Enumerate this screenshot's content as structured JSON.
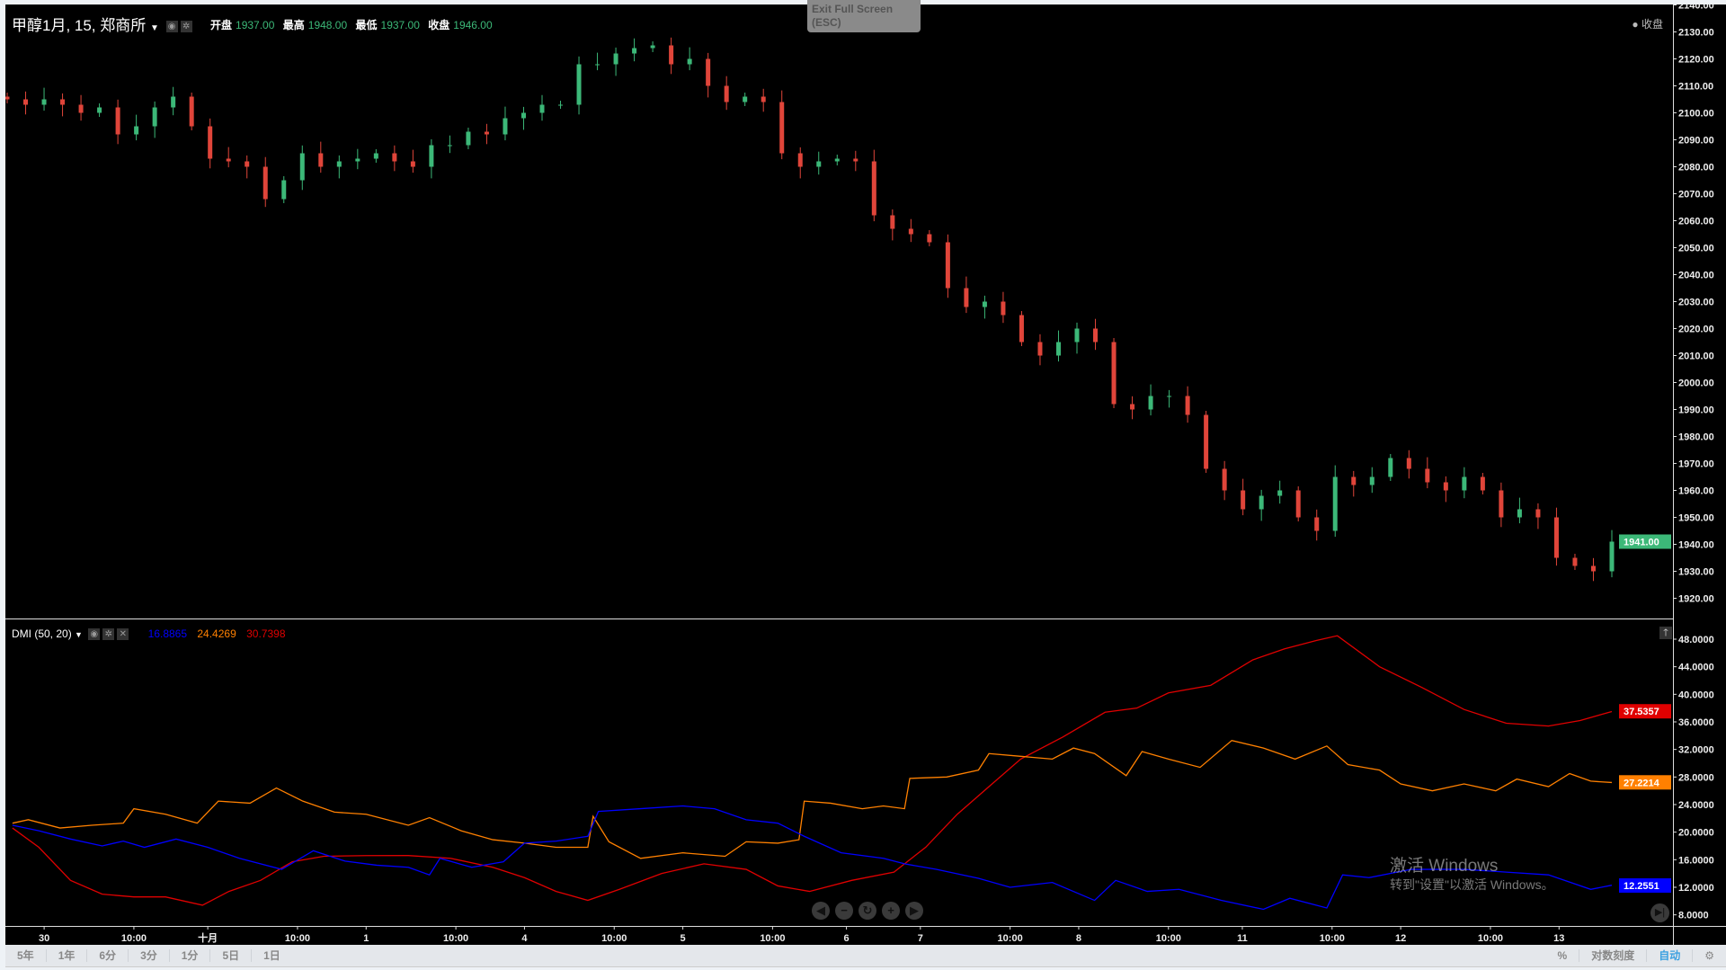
{
  "header": {
    "title": "甲醇1月, 15, 郑商所",
    "ohlc": [
      {
        "k": "开盘",
        "v": "1937.00"
      },
      {
        "k": "最高",
        "v": "1948.00"
      },
      {
        "k": "最低",
        "v": "1937.00"
      },
      {
        "k": "收盘",
        "v": "1946.00"
      }
    ],
    "status": "● 收盘"
  },
  "exit_fullscreen": {
    "line1": "Exit Full Screen",
    "line2": "(ESC)"
  },
  "dmi": {
    "name": "DMI (50, 20)",
    "values": [
      "16.8865",
      "24.4269",
      "30.7398"
    ],
    "colors": [
      "#0000ff",
      "#ff8000",
      "#e00000"
    ],
    "last_labels": {
      "adx": "37.5357",
      "minus": "27.2214",
      "plus": "12.2551"
    }
  },
  "watermark": {
    "line1": "激活 Windows",
    "line2": "转到\"设置\"以激活 Windows。"
  },
  "toolbar": {
    "ranges": [
      "5年",
      "1年",
      "6分",
      "3分",
      "1分",
      "5日",
      "1日"
    ],
    "percent": "%",
    "log": "对数刻度",
    "auto": "自动"
  },
  "chart_data": [
    {
      "type": "candlestick",
      "title": "甲醇1月, 15, 郑商所",
      "ylim": [
        1915,
        2140
      ],
      "yticks": [
        "2140.00",
        "2130.00",
        "2120.00",
        "2110.00",
        "2100.00",
        "2090.00",
        "2080.00",
        "2070.00",
        "2060.00",
        "2050.00",
        "2040.00",
        "2030.00",
        "2020.00",
        "2010.00",
        "2000.00",
        "1990.00",
        "1980.00",
        "1970.00",
        "1960.00",
        "1950.00",
        "1940.00",
        "1930.00",
        "1920.00"
      ],
      "last_price": "1941.00",
      "up_color": "#3cb878",
      "down_color": "#e0453a",
      "bars_total": 304,
      "closes": [
        2105,
        2103,
        2105,
        2103,
        2100,
        2102,
        2092,
        2095,
        2102,
        2106,
        2095,
        2083,
        2082,
        2080,
        2068,
        2075,
        2085,
        2080,
        2082,
        2083,
        2085,
        2082,
        2080,
        2088,
        2088,
        2093,
        2092,
        2098,
        2100,
        2103,
        2103,
        2118,
        2118,
        2122,
        2124,
        2125,
        2118,
        2120,
        2110,
        2104,
        2106,
        2104,
        2085,
        2080,
        2082,
        2083,
        2082,
        2062,
        2057,
        2055,
        2052,
        2035,
        2028,
        2030,
        2025,
        2015,
        2010,
        2015,
        2020,
        2015,
        1992,
        1990,
        1995,
        1995,
        1988,
        1968,
        1960,
        1953,
        1958,
        1960,
        1950,
        1945,
        1965,
        1962,
        1965,
        1972,
        1968,
        1963,
        1960,
        1965,
        1960,
        1950,
        1953,
        1950,
        1935,
        1932,
        1930,
        1941
      ]
    },
    {
      "type": "line",
      "title": "DMI (50, 20)",
      "ylim": [
        6.5,
        50
      ],
      "yticks": [
        "48.0000",
        "44.0000",
        "40.0000",
        "36.0000",
        "32.0000",
        "28.0000",
        "24.0000",
        "20.0000",
        "16.0000",
        "12.0000",
        "8.0000"
      ],
      "series": [
        {
          "name": "ADX",
          "color": "#e00000",
          "points": [
            [
              1,
              20.6
            ],
            [
              6,
              17.8
            ],
            [
              12,
              13
            ],
            [
              18,
              11
            ],
            [
              24,
              10.6
            ],
            [
              30,
              10.6
            ],
            [
              37,
              9.4
            ],
            [
              42,
              11.4
            ],
            [
              48,
              13
            ],
            [
              54,
              15.7
            ],
            [
              60,
              16.5
            ],
            [
              68,
              16.6
            ],
            [
              76,
              16.6
            ],
            [
              84,
              16.2
            ],
            [
              92,
              14.9
            ],
            [
              98,
              13.4
            ],
            [
              104,
              11.4
            ],
            [
              110,
              10.1
            ],
            [
              116,
              11.7
            ],
            [
              124,
              14
            ],
            [
              132,
              15.4
            ],
            [
              140,
              14.6
            ],
            [
              146,
              12.2
            ],
            [
              152,
              11.4
            ],
            [
              160,
              13
            ],
            [
              168,
              14.2
            ],
            [
              174,
              17.8
            ],
            [
              180,
              22.6
            ],
            [
              186,
              26.6
            ],
            [
              192,
              30.6
            ],
            [
              200,
              33.8
            ],
            [
              208,
              37.4
            ],
            [
              214,
              38
            ],
            [
              220,
              40.2
            ],
            [
              228,
              41.3
            ],
            [
              236,
              45
            ],
            [
              242,
              46.6
            ],
            [
              248,
              47.8
            ],
            [
              252,
              48.5
            ],
            [
              260,
              44
            ],
            [
              268,
              41
            ],
            [
              276,
              37.8
            ],
            [
              284,
              35.8
            ],
            [
              292,
              35.4
            ],
            [
              298,
              36.2
            ],
            [
              304,
              37.5
            ]
          ]
        },
        {
          "name": "-DI",
          "color": "#ff8000",
          "points": [
            [
              1,
              21.3
            ],
            [
              4,
              21.8
            ],
            [
              10,
              20.6
            ],
            [
              16,
              21
            ],
            [
              22,
              21.3
            ],
            [
              24,
              23.4
            ],
            [
              30,
              22.6
            ],
            [
              36,
              21.3
            ],
            [
              40,
              24.5
            ],
            [
              46,
              24.2
            ],
            [
              51,
              26.4
            ],
            [
              56,
              24.5
            ],
            [
              62,
              22.9
            ],
            [
              68,
              22.6
            ],
            [
              76,
              21
            ],
            [
              80,
              22.1
            ],
            [
              86,
              20.2
            ],
            [
              92,
              18.9
            ],
            [
              98,
              18.4
            ],
            [
              104,
              17.8
            ],
            [
              110,
              17.8
            ],
            [
              111,
              22.3
            ],
            [
              114,
              18.6
            ],
            [
              120,
              16.2
            ],
            [
              128,
              17
            ],
            [
              136,
              16.5
            ],
            [
              140,
              18.6
            ],
            [
              146,
              18.4
            ],
            [
              150,
              18.9
            ],
            [
              151,
              24.5
            ],
            [
              156,
              24.2
            ],
            [
              162,
              23.4
            ],
            [
              166,
              23.8
            ],
            [
              170,
              23.4
            ],
            [
              171,
              27.8
            ],
            [
              178,
              28
            ],
            [
              184,
              29
            ],
            [
              186,
              31.4
            ],
            [
              192,
              31
            ],
            [
              198,
              30.6
            ],
            [
              202,
              32.2
            ],
            [
              206,
              31.4
            ],
            [
              212,
              28.2
            ],
            [
              215,
              31.7
            ],
            [
              220,
              30.6
            ],
            [
              226,
              29.4
            ],
            [
              232,
              33.3
            ],
            [
              238,
              32.2
            ],
            [
              244,
              30.6
            ],
            [
              250,
              32.5
            ],
            [
              254,
              29.8
            ],
            [
              260,
              29
            ],
            [
              264,
              27
            ],
            [
              270,
              26
            ],
            [
              276,
              27
            ],
            [
              282,
              26
            ],
            [
              286,
              27.7
            ],
            [
              292,
              26.6
            ],
            [
              296,
              28.5
            ],
            [
              300,
              27.4
            ],
            [
              304,
              27.2
            ]
          ]
        },
        {
          "name": "+DI",
          "color": "#0000ff",
          "points": [
            [
              1,
              21
            ],
            [
              6,
              20.2
            ],
            [
              12,
              19
            ],
            [
              18,
              18
            ],
            [
              22,
              18.7
            ],
            [
              26,
              17.8
            ],
            [
              32,
              19
            ],
            [
              38,
              17.8
            ],
            [
              44,
              16.2
            ],
            [
              52,
              14.6
            ],
            [
              58,
              17.3
            ],
            [
              64,
              15.8
            ],
            [
              70,
              15.2
            ],
            [
              76,
              14.9
            ],
            [
              80,
              13.8
            ],
            [
              82,
              16.2
            ],
            [
              88,
              14.9
            ],
            [
              94,
              15.7
            ],
            [
              98,
              18.4
            ],
            [
              104,
              18.7
            ],
            [
              110,
              19.4
            ],
            [
              112,
              23
            ],
            [
              120,
              23.4
            ],
            [
              128,
              23.8
            ],
            [
              134,
              23.4
            ],
            [
              140,
              21.8
            ],
            [
              146,
              21.3
            ],
            [
              151,
              19.4
            ],
            [
              158,
              17
            ],
            [
              166,
              16.2
            ],
            [
              170,
              15.4
            ],
            [
              176,
              14.6
            ],
            [
              184,
              13.3
            ],
            [
              190,
              12
            ],
            [
              198,
              12.7
            ],
            [
              206,
              10.1
            ],
            [
              210,
              13
            ],
            [
              216,
              11.4
            ],
            [
              222,
              11.7
            ],
            [
              230,
              10.1
            ],
            [
              238,
              8.8
            ],
            [
              243,
              10.4
            ],
            [
              250,
              9
            ],
            [
              253,
              13.8
            ],
            [
              258,
              13.4
            ],
            [
              266,
              14.6
            ],
            [
              276,
              14.6
            ],
            [
              284,
              14.2
            ],
            [
              292,
              13.8
            ],
            [
              300,
              11.7
            ],
            [
              304,
              12.3
            ]
          ]
        }
      ]
    },
    {
      "type": "time_axis",
      "ticks": [
        {
          "bar": 7,
          "label": "30"
        },
        {
          "bar": 24,
          "label": "10:00"
        },
        {
          "bar": 38,
          "label": "十月"
        },
        {
          "bar": 55,
          "label": "10:00"
        },
        {
          "bar": 68,
          "label": "1"
        },
        {
          "bar": 85,
          "label": "10:00"
        },
        {
          "bar": 98,
          "label": "4"
        },
        {
          "bar": 115,
          "label": "10:00"
        },
        {
          "bar": 128,
          "label": "5"
        },
        {
          "bar": 145,
          "label": "10:00"
        },
        {
          "bar": 159,
          "label": "6"
        },
        {
          "bar": 173,
          "label": "7"
        },
        {
          "bar": 190,
          "label": "10:00"
        },
        {
          "bar": 203,
          "label": "8"
        },
        {
          "bar": 220,
          "label": "10:00"
        },
        {
          "bar": 234,
          "label": "11"
        },
        {
          "bar": 251,
          "label": "10:00"
        },
        {
          "bar": 264,
          "label": "12"
        },
        {
          "bar": 281,
          "label": "10:00"
        },
        {
          "bar": 294,
          "label": "13"
        }
      ]
    }
  ]
}
